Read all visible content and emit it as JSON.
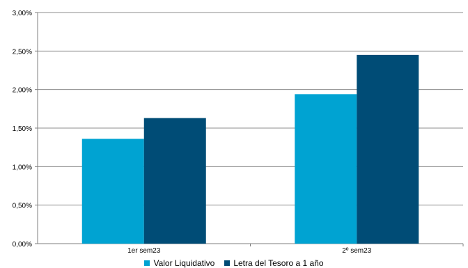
{
  "chart_data": {
    "type": "bar",
    "categories": [
      "1er sem23",
      "2º sem23"
    ],
    "series": [
      {
        "name": "Valor Liquidativo",
        "values": [
          1.36,
          1.94
        ],
        "color": "#00a3d2"
      },
      {
        "name": "Letra del Tesoro a 1 año",
        "values": [
          1.63,
          2.45
        ],
        "color": "#004c76"
      }
    ],
    "yticks": [
      "0,00%",
      "0,50%",
      "1,00%",
      "1,50%",
      "2,00%",
      "2,50%",
      "3,00%"
    ],
    "ylim": [
      0,
      3
    ],
    "grid": true,
    "legend_position": "bottom",
    "title": "",
    "xlabel": "",
    "ylabel": ""
  }
}
